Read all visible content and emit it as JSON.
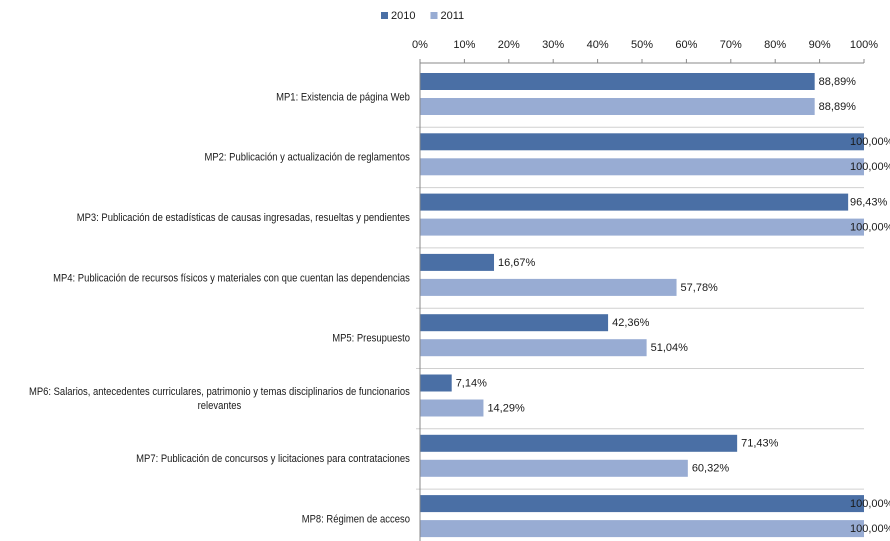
{
  "chart_data": {
    "type": "bar",
    "orientation": "horizontal",
    "categories": [
      "MP1: Existencia de página Web",
      "MP2: Publicación y actualización de reglamentos",
      "MP3: Publicación de estadísticas de causas ingresadas, resueltas y pendientes",
      "MP4: Publicación de recursos físicos y materiales con que cuentan las dependencias",
      "MP5: Presupuesto",
      "MP6: Salarios, antecedentes curriculares, patrimonio y temas disciplinarios de funcionarios relevantes",
      "MP7: Publicación de concursos y licitaciones para contrataciones",
      "MP8: Régimen de acceso"
    ],
    "series": [
      {
        "name": "2010",
        "color": "#4a6fa5",
        "values": [
          88.89,
          100,
          96.43,
          16.67,
          42.36,
          7.14,
          71.43,
          100
        ],
        "value_labels": [
          "88,89%",
          "100,00%",
          "96,43%",
          "16,67%",
          "42,36%",
          "7,14%",
          "71,43%",
          "100,00%"
        ]
      },
      {
        "name": "2011",
        "color": "#98acd3",
        "values": [
          88.89,
          100,
          100,
          57.78,
          51.04,
          14.29,
          60.32,
          100
        ],
        "value_labels": [
          "88,89%",
          "100,00%",
          "100,00%",
          "57,78%",
          "51,04%",
          "14,29%",
          "60,32%",
          "100,00%"
        ]
      }
    ],
    "xlim": [
      0,
      100
    ],
    "xticks": [
      {
        "value": 0,
        "label": "0%"
      },
      {
        "value": 10,
        "label": "10%"
      },
      {
        "value": 20,
        "label": "20%"
      },
      {
        "value": 30,
        "label": "30%"
      },
      {
        "value": 40,
        "label": "40%"
      },
      {
        "value": 50,
        "label": "50%"
      },
      {
        "value": 60,
        "label": "60%"
      },
      {
        "value": 70,
        "label": "70%"
      },
      {
        "value": 80,
        "label": "80%"
      },
      {
        "value": 90,
        "label": "90%"
      },
      {
        "value": 100,
        "label": "100%"
      }
    ],
    "legend": "top"
  }
}
